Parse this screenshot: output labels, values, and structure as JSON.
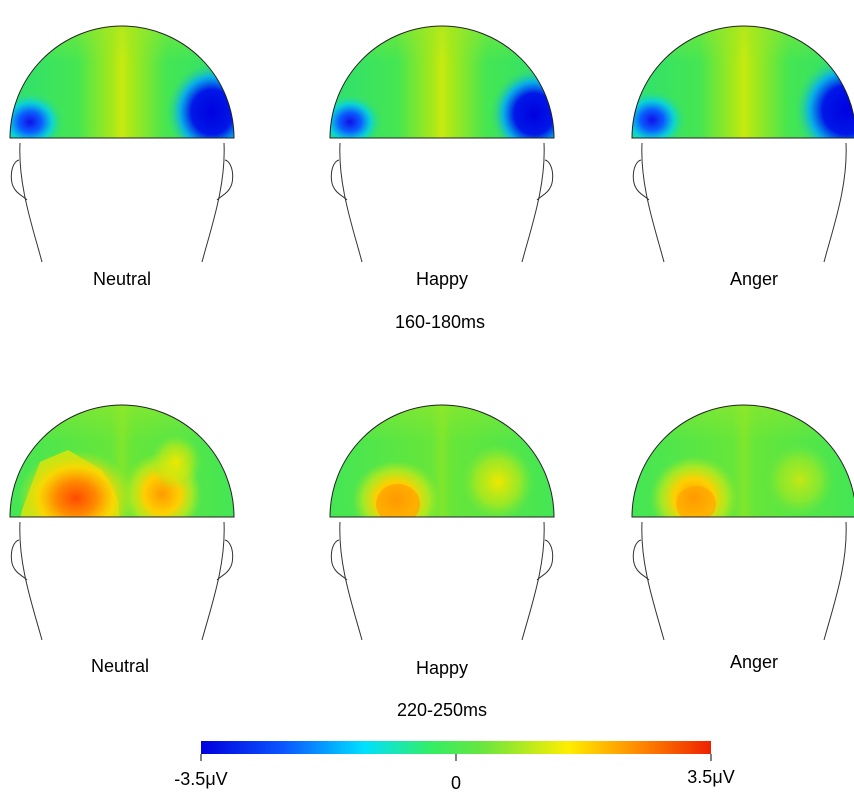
{
  "row1": {
    "labels": [
      "Neutral",
      "Happy",
      "Anger"
    ],
    "time_window": "160-180ms"
  },
  "row2": {
    "labels": [
      "Neutral",
      "Happy",
      "Anger"
    ],
    "time_window": "220-250ms"
  },
  "colorbar": {
    "min_label": "-3.5μV",
    "mid_label": "0",
    "max_label": "3.5μV",
    "colors": [
      "#0000dd",
      "#0a55ff",
      "#00e0ff",
      "#33ee66",
      "#88e633",
      "#ffee00",
      "#ff8800",
      "#ee2200"
    ]
  },
  "colors": {
    "base_green": "#33e65a",
    "midline_yellow": "#b8ea12",
    "negative_blue": "#0000e0",
    "positive_orange": "#ff7a10"
  }
}
